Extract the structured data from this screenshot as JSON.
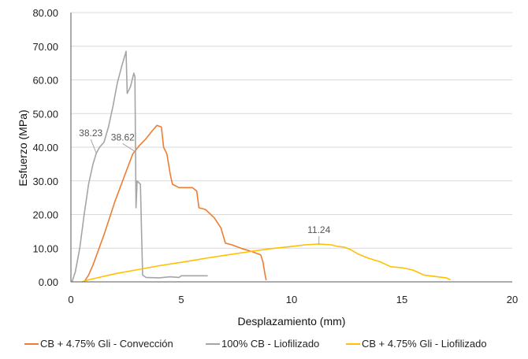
{
  "chart_data": {
    "type": "line",
    "xlabel": "Desplazamiento (mm)",
    "ylabel": "Esfuerzo (MPa)",
    "xlim": [
      0,
      20
    ],
    "ylim": [
      0,
      80
    ],
    "x_ticks": [
      0,
      5,
      10,
      15,
      20
    ],
    "x_tick_labels": [
      "0",
      "5",
      "10",
      "15",
      "20"
    ],
    "y_ticks": [
      0,
      10,
      20,
      30,
      40,
      50,
      60,
      70,
      80
    ],
    "y_tick_labels": [
      "0.00",
      "10.00",
      "20.00",
      "30.00",
      "40.00",
      "50.00",
      "60.00",
      "70.00",
      "80.00"
    ],
    "grid": "horizontal",
    "legend_position": "bottom",
    "series": [
      {
        "name": "CB + 4.75% Gli - Convección",
        "color": "#ED7D31",
        "points": [
          [
            0.6,
            0
          ],
          [
            0.8,
            2
          ],
          [
            1.0,
            5
          ],
          [
            1.5,
            14
          ],
          [
            2.0,
            24
          ],
          [
            2.4,
            31
          ],
          [
            2.8,
            38
          ],
          [
            3.1,
            40.5
          ],
          [
            3.4,
            42.5
          ],
          [
            3.7,
            45
          ],
          [
            3.9,
            46.5
          ],
          [
            4.1,
            46
          ],
          [
            4.2,
            40
          ],
          [
            4.35,
            38
          ],
          [
            4.5,
            32
          ],
          [
            4.6,
            29
          ],
          [
            4.9,
            28
          ],
          [
            5.2,
            28
          ],
          [
            5.5,
            28
          ],
          [
            5.7,
            27
          ],
          [
            5.8,
            22
          ],
          [
            6.1,
            21.5
          ],
          [
            6.5,
            19
          ],
          [
            6.8,
            16
          ],
          [
            7.0,
            11.5
          ],
          [
            7.3,
            11
          ],
          [
            7.7,
            10
          ],
          [
            8.2,
            9
          ],
          [
            8.6,
            8
          ],
          [
            8.7,
            6
          ],
          [
            8.8,
            2
          ],
          [
            8.85,
            0.5
          ]
        ]
      },
      {
        "name": "100% CB - Liofilizado",
        "color": "#A5A5A5",
        "points": [
          [
            0.05,
            0
          ],
          [
            0.2,
            3
          ],
          [
            0.4,
            10
          ],
          [
            0.6,
            20
          ],
          [
            0.8,
            29
          ],
          [
            1.0,
            35
          ],
          [
            1.15,
            38.23
          ],
          [
            1.3,
            40
          ],
          [
            1.5,
            41.5
          ],
          [
            1.7,
            46
          ],
          [
            1.9,
            52
          ],
          [
            2.1,
            59
          ],
          [
            2.3,
            64
          ],
          [
            2.5,
            68.5
          ],
          [
            2.55,
            56
          ],
          [
            2.7,
            58
          ],
          [
            2.85,
            62
          ],
          [
            2.9,
            61
          ],
          [
            2.93,
            38.62
          ],
          [
            2.95,
            22
          ],
          [
            3.0,
            30
          ],
          [
            3.15,
            29
          ],
          [
            3.2,
            15
          ],
          [
            3.25,
            2
          ],
          [
            3.4,
            1.3
          ],
          [
            4.0,
            1.2
          ],
          [
            4.5,
            1.5
          ],
          [
            4.9,
            1.3
          ],
          [
            5.0,
            1.8
          ],
          [
            6.2,
            1.8
          ]
        ]
      },
      {
        "name": "CB + 4.75% Gli - Liofilizado",
        "color": "#FFC000",
        "points": [
          [
            0.5,
            0
          ],
          [
            0.8,
            0.6
          ],
          [
            1.2,
            1.2
          ],
          [
            2,
            2.4
          ],
          [
            3,
            3.6
          ],
          [
            4,
            4.8
          ],
          [
            5,
            5.8
          ],
          [
            6,
            6.9
          ],
          [
            7,
            7.9
          ],
          [
            8,
            8.9
          ],
          [
            9,
            9.8
          ],
          [
            10,
            10.5
          ],
          [
            10.6,
            11
          ],
          [
            11.24,
            11.24
          ],
          [
            11.8,
            11
          ],
          [
            12.1,
            10.5
          ],
          [
            12.4,
            10.3
          ],
          [
            12.7,
            9.5
          ],
          [
            13.0,
            8.3
          ],
          [
            13.5,
            7
          ],
          [
            14,
            6
          ],
          [
            14.5,
            4.5
          ],
          [
            15,
            4.2
          ],
          [
            15.5,
            3.5
          ],
          [
            16,
            2
          ],
          [
            16.5,
            1.6
          ],
          [
            17,
            1.2
          ],
          [
            17.2,
            0.6
          ]
        ]
      }
    ],
    "annotations": [
      {
        "label": "38.23",
        "series": 1,
        "point": [
          1.15,
          38.23
        ],
        "text_at": [
          0.9,
          43.3
        ]
      },
      {
        "label": "38.62",
        "series": 1,
        "point": [
          2.93,
          38.62
        ],
        "text_at": [
          2.35,
          42.0
        ]
      },
      {
        "label": "11.24",
        "series": 2,
        "point": [
          11.24,
          11.24
        ],
        "text_at": [
          11.24,
          14.5
        ]
      }
    ]
  }
}
